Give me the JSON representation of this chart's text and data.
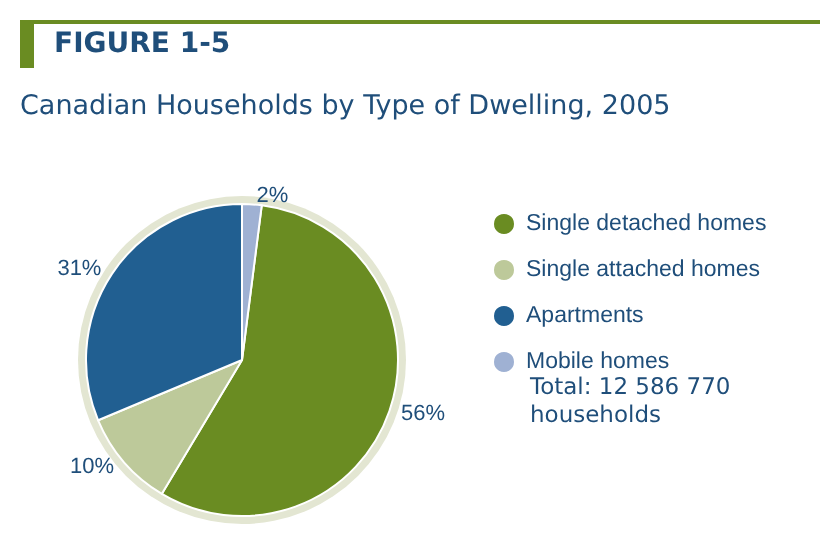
{
  "chart_data": {
    "type": "pie",
    "title": "FIGURE 1-5",
    "subtitle": "Canadian Households by Type of Dwelling, 2005",
    "categories": [
      "Single detached homes",
      "Single attached homes",
      "Apartments",
      "Mobile homes"
    ],
    "values": [
      56,
      10,
      31,
      2
    ],
    "value_labels": [
      "56%",
      "10%",
      "31%",
      "2%"
    ],
    "colors": [
      "#6a8c22",
      "#bdc99a",
      "#215f91",
      "#9fb1d3"
    ],
    "legend": "right",
    "annotations": [
      "Total: 12 586 770 households"
    ]
  }
}
